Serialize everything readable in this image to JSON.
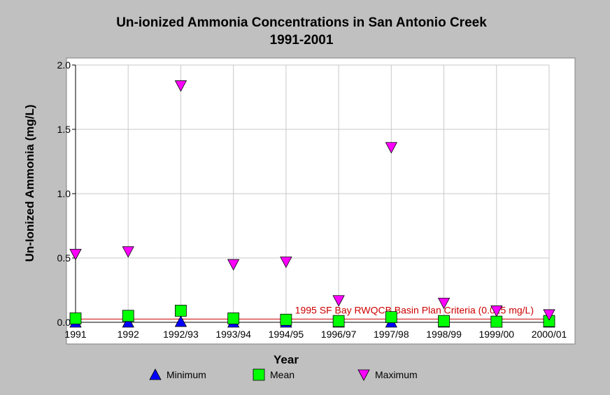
{
  "chart_data": {
    "type": "scatter",
    "title": "Un-ionized Ammonia Concentrations in San Antonio Creek",
    "subtitle": "1991-2001",
    "xlabel": "Year",
    "ylabel": "Un-Ionized Ammonia (mg/L)",
    "categories": [
      "1991",
      "1992",
      "1992/93",
      "1993/94",
      "1994/95",
      "1996/97",
      "1997/98",
      "1998/99",
      "1999/00",
      "2000/01"
    ],
    "ylim": [
      0,
      2.0
    ],
    "yticks": [
      "0.0",
      "0.5",
      "1.0",
      "1.5",
      "2.0"
    ],
    "grid": true,
    "legend_position": "bottom",
    "series": [
      {
        "name": "Minimum",
        "marker": "triangle-up",
        "color": "#0000ff",
        "values": [
          0.0,
          0.0,
          0.005,
          0.0,
          0.0,
          0.0,
          0.0,
          0.0,
          0.0,
          0.0
        ]
      },
      {
        "name": "Mean",
        "marker": "square",
        "color": "#00ff00",
        "values": [
          0.03,
          0.05,
          0.09,
          0.03,
          0.02,
          0.01,
          0.04,
          0.01,
          0.005,
          0.01
        ]
      },
      {
        "name": "Maximum",
        "marker": "triangle-down",
        "color": "#ff00ff",
        "values": [
          0.53,
          0.55,
          1.84,
          0.45,
          0.47,
          0.17,
          1.36,
          0.15,
          0.09,
          0.06
        ]
      }
    ],
    "reference_line": {
      "value": 0.025,
      "color": "#cc0000",
      "label": "1995 SF Bay RWQCB Basin Plan Criteria (0.025 mg/L)"
    }
  }
}
